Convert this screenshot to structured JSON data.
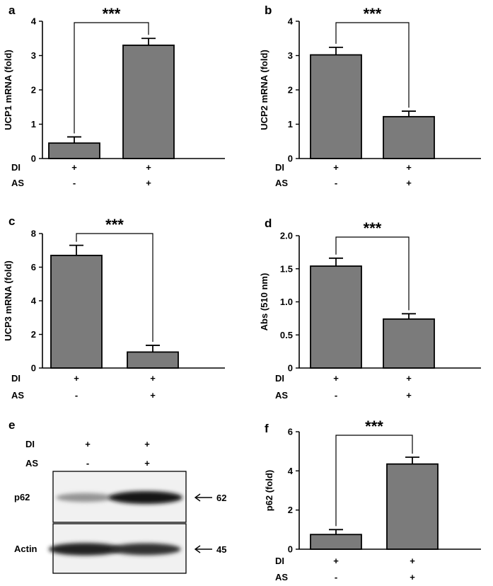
{
  "chart_data": [
    {
      "panel": "a",
      "type": "bar",
      "ylabel": "UCP1 mRNA (fold)",
      "ylim": [
        0,
        4
      ],
      "yticks": [
        0,
        1,
        2,
        3,
        4
      ],
      "values": [
        0.45,
        3.3
      ],
      "errors": [
        0.18,
        0.2
      ],
      "significance": "***",
      "conditions": [
        {
          "label": "DI",
          "values": [
            "+",
            "+"
          ]
        },
        {
          "label": "AS",
          "values": [
            "-",
            "+"
          ]
        }
      ]
    },
    {
      "panel": "b",
      "type": "bar",
      "ylabel": "UCP2 mRNA (fold)",
      "ylim": [
        0,
        4
      ],
      "yticks": [
        0,
        1,
        2,
        3,
        4
      ],
      "values": [
        3.02,
        1.22
      ],
      "errors": [
        0.22,
        0.16
      ],
      "significance": "***",
      "conditions": [
        {
          "label": "DI",
          "values": [
            "+",
            "+"
          ]
        },
        {
          "label": "AS",
          "values": [
            "-",
            "+"
          ]
        }
      ]
    },
    {
      "panel": "c",
      "type": "bar",
      "ylabel": "UCP3 mRNA (fold)",
      "ylim": [
        0,
        8
      ],
      "yticks": [
        0,
        2,
        4,
        6,
        8
      ],
      "values": [
        6.7,
        0.95
      ],
      "errors": [
        0.6,
        0.4
      ],
      "significance": "***",
      "conditions": [
        {
          "label": "DI",
          "values": [
            "+",
            "+"
          ]
        },
        {
          "label": "AS",
          "values": [
            "-",
            "+"
          ]
        }
      ]
    },
    {
      "panel": "d",
      "type": "bar",
      "ylabel": "Abs (510 nm)",
      "ylim": [
        0,
        2.0
      ],
      "yticks": [
        "0",
        "0.5",
        "1.0",
        "1.5",
        "2.0"
      ],
      "values": [
        1.54,
        0.74
      ],
      "errors": [
        0.12,
        0.08
      ],
      "significance": "***",
      "conditions": [
        {
          "label": "DI",
          "values": [
            "+",
            "+"
          ]
        },
        {
          "label": "AS",
          "values": [
            "-",
            "+"
          ]
        }
      ]
    },
    {
      "panel": "f",
      "type": "bar",
      "ylabel": "p62 (fold)",
      "ylim": [
        0,
        6
      ],
      "yticks": [
        0,
        2,
        4,
        6
      ],
      "values": [
        0.75,
        4.35
      ],
      "errors": [
        0.25,
        0.35
      ],
      "significance": "***",
      "conditions": [
        {
          "label": "DI",
          "values": [
            "+",
            "+"
          ]
        },
        {
          "label": "AS",
          "values": [
            "-",
            "+"
          ]
        }
      ]
    }
  ],
  "blot": {
    "panel": "e",
    "conditions": [
      {
        "label": "DI",
        "values": [
          "+",
          "+"
        ]
      },
      {
        "label": "AS",
        "values": [
          "-",
          "+"
        ]
      }
    ],
    "rows": [
      {
        "label": "p62",
        "size": "62",
        "intensity": [
          0.3,
          1.0
        ]
      },
      {
        "label": "Actin",
        "size": "45",
        "intensity": [
          0.95,
          0.85
        ]
      }
    ]
  },
  "colors": {
    "bar": "#7b7b7b",
    "axis": "#000000"
  }
}
